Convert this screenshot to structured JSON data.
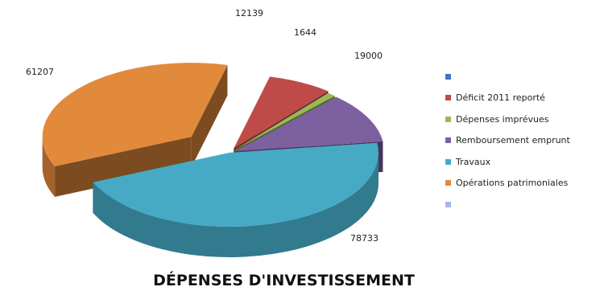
{
  "chart_data": {
    "type": "pie",
    "title": "DÉPENSES D'INVESTISSEMENT",
    "series": [
      {
        "name": "",
        "value": null,
        "color": "#4472C4"
      },
      {
        "name": "Déficit 2011 reporté",
        "value": 12139,
        "color": "#BE4B48"
      },
      {
        "name": "Dépenses imprévues",
        "value": 1644,
        "color": "#98B954"
      },
      {
        "name": "Remboursement emprunt",
        "value": 19000,
        "color": "#7D60A0"
      },
      {
        "name": "Travaux",
        "value": 78733,
        "color": "#46AAC5"
      },
      {
        "name": "Opérations patrimoniales",
        "value": 61207,
        "color": "#E28A3B"
      },
      {
        "name": "",
        "value": null,
        "color": "#A6B6E8"
      }
    ],
    "legend_position": "right",
    "style": "3d-exploded"
  }
}
